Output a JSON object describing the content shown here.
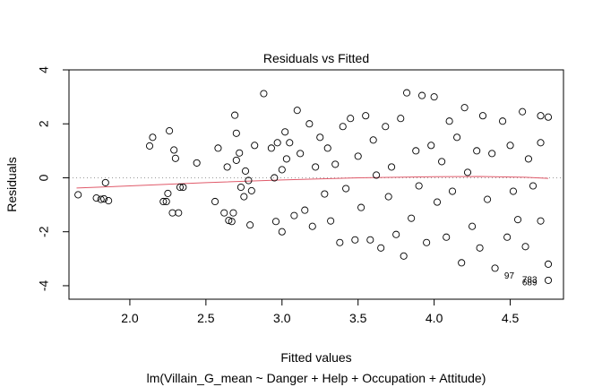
{
  "chart_data": {
    "type": "scatter",
    "title": "Residuals vs Fitted",
    "xlabel": "Fitted values",
    "ylabel": "Residuals",
    "subtitle": "lm(Villain_G_mean ~ Danger + Help + Occupation + Attitude)",
    "xlim": [
      1.6,
      4.85
    ],
    "ylim": [
      -4.5,
      4.0
    ],
    "x_ticks": [
      2.0,
      2.5,
      3.0,
      3.5,
      4.0,
      4.5
    ],
    "x_tick_labels": [
      "2.0",
      "2.5",
      "3.0",
      "3.5",
      "4.0",
      "4.5"
    ],
    "y_ticks": [
      -4,
      -2,
      0,
      2,
      4
    ],
    "y_tick_labels": [
      "-4",
      "-2",
      "0",
      "2",
      "4"
    ],
    "grid": false,
    "reference_line": {
      "y": 0,
      "style": "dotted",
      "color": "#999999"
    },
    "smoother": {
      "color": "#e05a6a",
      "x": [
        1.65,
        2.0,
        2.5,
        3.0,
        3.5,
        4.0,
        4.3,
        4.6,
        4.75
      ],
      "y": [
        -0.38,
        -0.3,
        -0.18,
        -0.08,
        0.0,
        0.04,
        0.05,
        0.02,
        -0.02
      ]
    },
    "point_labels": [
      {
        "text": "97",
        "x": 4.55,
        "y": -3.6
      },
      {
        "text": "783",
        "x": 4.7,
        "y": -3.75
      },
      {
        "text": "689",
        "x": 4.7,
        "y": -3.85
      }
    ],
    "points": [
      {
        "x": 1.66,
        "y": -0.63
      },
      {
        "x": 1.78,
        "y": -0.75
      },
      {
        "x": 1.81,
        "y": -0.8
      },
      {
        "x": 1.83,
        "y": -0.78
      },
      {
        "x": 1.84,
        "y": -0.18
      },
      {
        "x": 1.86,
        "y": -0.85
      },
      {
        "x": 2.13,
        "y": 1.18
      },
      {
        "x": 2.15,
        "y": 1.5
      },
      {
        "x": 2.22,
        "y": -0.88
      },
      {
        "x": 2.24,
        "y": -0.88
      },
      {
        "x": 2.25,
        "y": -0.58
      },
      {
        "x": 2.26,
        "y": 1.74
      },
      {
        "x": 2.28,
        "y": -1.3
      },
      {
        "x": 2.29,
        "y": 1.03
      },
      {
        "x": 2.3,
        "y": 0.72
      },
      {
        "x": 2.32,
        "y": -1.3
      },
      {
        "x": 2.33,
        "y": -0.35
      },
      {
        "x": 2.35,
        "y": -0.35
      },
      {
        "x": 2.44,
        "y": 0.55
      },
      {
        "x": 2.56,
        "y": -0.88
      },
      {
        "x": 2.58,
        "y": 1.1
      },
      {
        "x": 2.62,
        "y": -1.3
      },
      {
        "x": 2.64,
        "y": 0.4
      },
      {
        "x": 2.65,
        "y": -1.58
      },
      {
        "x": 2.67,
        "y": -1.62
      },
      {
        "x": 2.68,
        "y": -1.3
      },
      {
        "x": 2.69,
        "y": 2.32
      },
      {
        "x": 2.7,
        "y": 1.65
      },
      {
        "x": 2.7,
        "y": 0.65
      },
      {
        "x": 2.72,
        "y": 0.92
      },
      {
        "x": 2.73,
        "y": -0.35
      },
      {
        "x": 2.75,
        "y": -0.7
      },
      {
        "x": 2.76,
        "y": 0.25
      },
      {
        "x": 2.78,
        "y": -0.1
      },
      {
        "x": 2.79,
        "y": -1.75
      },
      {
        "x": 2.8,
        "y": -0.48
      },
      {
        "x": 2.82,
        "y": 1.2
      },
      {
        "x": 2.88,
        "y": 3.12
      },
      {
        "x": 2.93,
        "y": 1.1
      },
      {
        "x": 2.95,
        "y": 0.0
      },
      {
        "x": 2.96,
        "y": -1.62
      },
      {
        "x": 2.97,
        "y": 1.3
      },
      {
        "x": 3.0,
        "y": 0.3
      },
      {
        "x": 3.0,
        "y": -2.0
      },
      {
        "x": 3.02,
        "y": 1.7
      },
      {
        "x": 3.03,
        "y": 0.7
      },
      {
        "x": 3.05,
        "y": 1.3
      },
      {
        "x": 3.08,
        "y": -1.4
      },
      {
        "x": 3.1,
        "y": 2.5
      },
      {
        "x": 3.12,
        "y": 0.9
      },
      {
        "x": 3.15,
        "y": -1.2
      },
      {
        "x": 3.18,
        "y": 2.0
      },
      {
        "x": 3.2,
        "y": -1.8
      },
      {
        "x": 3.22,
        "y": 0.4
      },
      {
        "x": 3.25,
        "y": 1.5
      },
      {
        "x": 3.28,
        "y": -0.6
      },
      {
        "x": 3.3,
        "y": 1.1
      },
      {
        "x": 3.32,
        "y": -1.6
      },
      {
        "x": 3.35,
        "y": 0.5
      },
      {
        "x": 3.38,
        "y": -2.4
      },
      {
        "x": 3.4,
        "y": 1.9
      },
      {
        "x": 3.42,
        "y": -0.4
      },
      {
        "x": 3.45,
        "y": 2.2
      },
      {
        "x": 3.48,
        "y": -2.3
      },
      {
        "x": 3.5,
        "y": 0.8
      },
      {
        "x": 3.52,
        "y": -1.1
      },
      {
        "x": 3.55,
        "y": 2.3
      },
      {
        "x": 3.58,
        "y": -2.3
      },
      {
        "x": 3.6,
        "y": 1.4
      },
      {
        "x": 3.62,
        "y": 0.1
      },
      {
        "x": 3.65,
        "y": -2.6
      },
      {
        "x": 3.68,
        "y": 1.9
      },
      {
        "x": 3.7,
        "y": -0.7
      },
      {
        "x": 3.72,
        "y": 0.4
      },
      {
        "x": 3.75,
        "y": -2.1
      },
      {
        "x": 3.78,
        "y": 2.2
      },
      {
        "x": 3.8,
        "y": -2.9
      },
      {
        "x": 3.82,
        "y": 3.15
      },
      {
        "x": 3.85,
        "y": -1.5
      },
      {
        "x": 3.88,
        "y": 1.0
      },
      {
        "x": 3.9,
        "y": -0.3
      },
      {
        "x": 3.92,
        "y": 3.05
      },
      {
        "x": 3.95,
        "y": -2.4
      },
      {
        "x": 3.98,
        "y": 1.2
      },
      {
        "x": 4.0,
        "y": 3.0
      },
      {
        "x": 4.02,
        "y": -0.9
      },
      {
        "x": 4.05,
        "y": 0.6
      },
      {
        "x": 4.08,
        "y": -2.2
      },
      {
        "x": 4.1,
        "y": 2.1
      },
      {
        "x": 4.12,
        "y": -0.5
      },
      {
        "x": 4.15,
        "y": 1.5
      },
      {
        "x": 4.18,
        "y": -3.15
      },
      {
        "x": 4.2,
        "y": 2.6
      },
      {
        "x": 4.22,
        "y": 0.2
      },
      {
        "x": 4.25,
        "y": -1.8
      },
      {
        "x": 4.28,
        "y": 1.0
      },
      {
        "x": 4.3,
        "y": -2.6
      },
      {
        "x": 4.32,
        "y": 2.3
      },
      {
        "x": 4.35,
        "y": -0.8
      },
      {
        "x": 4.38,
        "y": 0.9
      },
      {
        "x": 4.4,
        "y": -3.35
      },
      {
        "x": 4.45,
        "y": 2.1
      },
      {
        "x": 4.48,
        "y": -2.2
      },
      {
        "x": 4.5,
        "y": 1.2
      },
      {
        "x": 4.52,
        "y": -0.5
      },
      {
        "x": 4.55,
        "y": -1.55
      },
      {
        "x": 4.58,
        "y": 2.45
      },
      {
        "x": 4.6,
        "y": -2.55
      },
      {
        "x": 4.62,
        "y": 0.7
      },
      {
        "x": 4.65,
        "y": -0.3
      },
      {
        "x": 4.7,
        "y": 2.3
      },
      {
        "x": 4.7,
        "y": -1.6
      },
      {
        "x": 4.7,
        "y": 1.3
      },
      {
        "x": 4.75,
        "y": 2.25
      },
      {
        "x": 4.75,
        "y": -3.2
      },
      {
        "x": 4.75,
        "y": -3.8
      }
    ]
  }
}
